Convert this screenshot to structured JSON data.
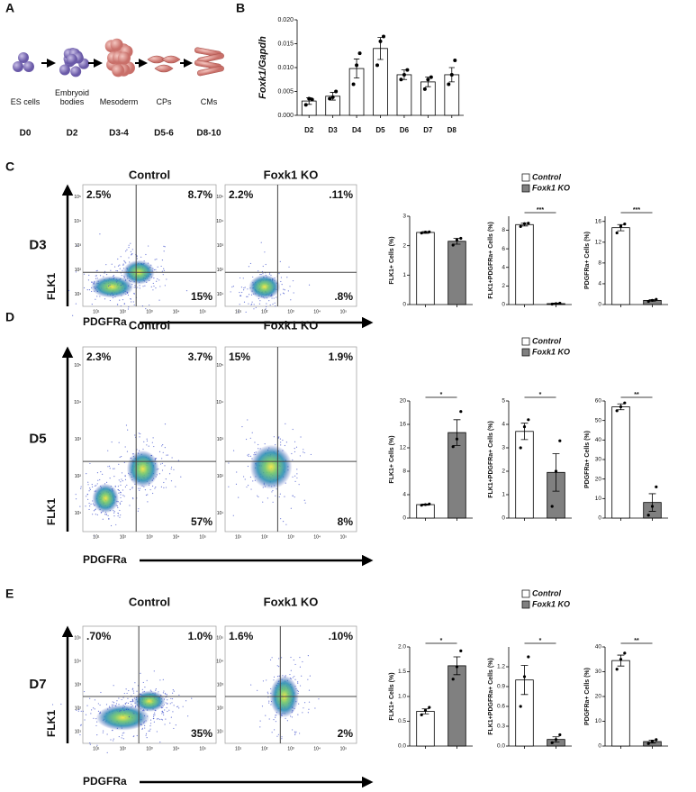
{
  "figure": {
    "panel_a": {
      "label": "A",
      "stages": [
        {
          "name": "ES cells",
          "day": "D0"
        },
        {
          "name": "Embryoid bodies",
          "day": "D2"
        },
        {
          "name": "Mesoderm",
          "day": "D3-4"
        },
        {
          "name": "CPs",
          "day": "D5-6"
        },
        {
          "name": "CMs",
          "day": "D8-10"
        }
      ]
    },
    "panel_b_label": "B",
    "flow_axis_ticks": [
      "10¹",
      "10²",
      "10³",
      "10⁴",
      "10⁵"
    ],
    "flow_panels": [
      {
        "label": "C",
        "day": "D3",
        "titles": [
          "Control",
          "Foxk1 KO"
        ],
        "y_label": "FLK1",
        "x_label": "PDGFRa",
        "plots": [
          {
            "top_left": "2.5%",
            "top_right": "8.7%",
            "bottom_right": "15%"
          },
          {
            "top_left": "2.2%",
            "top_right": ".11%",
            "bottom_right": ".8%"
          }
        ]
      },
      {
        "label": "D",
        "day": "D5",
        "titles": [
          "Control",
          "Foxk1 KO"
        ],
        "y_label": "FLK1",
        "x_label": "PDGFRa",
        "plots": [
          {
            "top_left": "2.3%",
            "top_right": "3.7%",
            "bottom_right": "57%"
          },
          {
            "top_left": "15%",
            "top_right": "1.9%",
            "bottom_right": "8%"
          }
        ]
      },
      {
        "label": "E",
        "day": "D7",
        "titles": [
          "Control",
          "Foxk1 KO"
        ],
        "y_label": "FLK1",
        "x_label": "PDGFRa",
        "plots": [
          {
            "top_left": ".70%",
            "top_right": "1.0%",
            "bottom_right": "35%"
          },
          {
            "top_left": "1.6%",
            "top_right": ".10%",
            "bottom_right": "2%"
          }
        ]
      }
    ]
  },
  "chart_data": [
    {
      "type": "bar",
      "y_label": "Foxk1/Gapdh",
      "color": "#ffffff",
      "categories": [
        "D2",
        "D3",
        "D4",
        "D5",
        "D6",
        "D7",
        "D8"
      ],
      "values": [
        0.003,
        0.004,
        0.0098,
        0.014,
        0.0085,
        0.007,
        0.0085
      ],
      "errors": [
        0.0007,
        0.0008,
        0.002,
        0.0023,
        0.001,
        0.001,
        0.0015
      ],
      "points": [
        [
          0.0022,
          0.0035,
          0.0033
        ],
        [
          0.0035,
          0.0038,
          0.005
        ],
        [
          0.0065,
          0.0105,
          0.013
        ],
        [
          0.0105,
          0.0155,
          0.0165
        ],
        [
          0.0075,
          0.0085,
          0.0095
        ],
        [
          0.0055,
          0.0075,
          0.008
        ],
        [
          0.0065,
          0.0085,
          0.0115
        ]
      ],
      "ylim": [
        0,
        0.02
      ],
      "yticks": [
        {
          "value": 0,
          "label": "0.000"
        },
        {
          "value": 0.005,
          "label": "0.005"
        },
        {
          "value": 0.01,
          "label": "0.010"
        },
        {
          "value": 0.015,
          "label": "0.015"
        },
        {
          "value": 0.02,
          "label": "0.020"
        }
      ]
    },
    {
      "type": "bar",
      "y_label": "FLK1+ Cells (%)",
      "ylim": [
        0,
        3
      ],
      "yticks": [
        0,
        1,
        2,
        3
      ],
      "series": [
        {
          "name": "Control",
          "color": "#ffffff",
          "values": [
            2.45
          ],
          "errors": [
            0.03
          ],
          "points": [
            [
              2.43,
              2.46,
              2.47
            ]
          ]
        },
        {
          "name": "Foxk1 KO",
          "color": "#808080",
          "values": [
            2.15
          ],
          "errors": [
            0.1
          ],
          "points": [
            [
              2.02,
              2.2,
              2.25
            ]
          ]
        }
      ]
    },
    {
      "type": "bar",
      "y_label": "FLK1+PDGFRa+ Cells (%)",
      "ylim": [
        0,
        9.5
      ],
      "yticks": [
        0,
        2,
        4,
        6,
        8
      ],
      "significance": "***",
      "series": [
        {
          "name": "Control",
          "color": "#ffffff",
          "values": [
            8.6
          ],
          "errors": [
            0.15
          ],
          "points": [
            [
              8.4,
              8.7,
              8.75
            ]
          ]
        },
        {
          "name": "Foxk1 KO",
          "color": "#808080",
          "values": [
            0.1
          ],
          "errors": [
            0.05
          ],
          "points": [
            [
              0.05,
              0.1,
              0.15
            ]
          ]
        }
      ]
    },
    {
      "type": "bar",
      "y_label": "PDGFRa+ Cells (%)",
      "ylim": [
        0,
        17
      ],
      "yticks": [
        0,
        4,
        8,
        12,
        16
      ],
      "significance": "***",
      "series": [
        {
          "name": "Control",
          "color": "#ffffff",
          "values": [
            14.8
          ],
          "errors": [
            0.6
          ],
          "points": [
            [
              13.8,
              15.1,
              15.5
            ]
          ]
        },
        {
          "name": "Foxk1 KO",
          "color": "#808080",
          "values": [
            0.8
          ],
          "errors": [
            0.15
          ],
          "points": [
            [
              0.6,
              0.8,
              1.0
            ]
          ]
        }
      ]
    },
    {
      "type": "bar",
      "y_label": "FLK1+ Cells (%)",
      "ylim": [
        0,
        20
      ],
      "yticks": [
        0,
        4,
        8,
        12,
        16,
        20
      ],
      "significance": "*",
      "series": [
        {
          "name": "Control",
          "color": "#ffffff",
          "values": [
            2.3
          ],
          "errors": [
            0.1
          ],
          "points": [
            [
              2.2,
              2.3,
              2.4
            ]
          ]
        },
        {
          "name": "Foxk1 KO",
          "color": "#808080",
          "values": [
            14.6
          ],
          "errors": [
            2.2
          ],
          "points": [
            [
              12.2,
              13.5,
              18.2
            ]
          ]
        }
      ]
    },
    {
      "type": "bar",
      "y_label": "FLK1+PDGFRa+ Cells (%)",
      "ylim": [
        0,
        5
      ],
      "yticks": [
        0,
        1,
        2,
        3,
        4,
        5
      ],
      "significance": "*",
      "series": [
        {
          "name": "Control",
          "color": "#ffffff",
          "values": [
            3.7
          ],
          "errors": [
            0.35
          ],
          "points": [
            [
              3.0,
              3.9,
              4.2
            ]
          ]
        },
        {
          "name": "Foxk1 KO",
          "color": "#808080",
          "values": [
            1.95
          ],
          "errors": [
            0.8
          ],
          "points": [
            [
              0.5,
              2.0,
              3.3
            ]
          ]
        }
      ]
    },
    {
      "type": "bar",
      "y_label": "PDGFRa+ Cells (%)",
      "ylim": [
        0,
        60
      ],
      "yticks": [
        0,
        10,
        20,
        30,
        40,
        50,
        60
      ],
      "significance": "**",
      "series": [
        {
          "name": "Control",
          "color": "#ffffff",
          "values": [
            57
          ],
          "errors": [
            1.5
          ],
          "points": [
            [
              55,
              57,
              59
            ]
          ]
        },
        {
          "name": "Foxk1 KO",
          "color": "#808080",
          "values": [
            8
          ],
          "errors": [
            4.5
          ],
          "points": [
            [
              1.5,
              6,
              16
            ]
          ]
        }
      ]
    },
    {
      "type": "bar",
      "y_label": "FLK1+ Cells (%)",
      "ylim": [
        0,
        2
      ],
      "yticks": [
        {
          "value": 0,
          "label": "0.0"
        },
        0.5,
        {
          "value": 1,
          "label": "1.0"
        },
        1.5,
        {
          "value": 2,
          "label": "2.0"
        }
      ],
      "significance": "*",
      "series": [
        {
          "name": "Control",
          "color": "#ffffff",
          "values": [
            0.7
          ],
          "errors": [
            0.05
          ],
          "points": [
            [
              0.63,
              0.72,
              0.78
            ]
          ]
        },
        {
          "name": "Foxk1 KO",
          "color": "#808080",
          "values": [
            1.62
          ],
          "errors": [
            0.18
          ],
          "points": [
            [
              1.35,
              1.6,
              1.92
            ]
          ]
        }
      ]
    },
    {
      "type": "bar",
      "y_label": "FLK1+PDGFRa+ Cells (%)",
      "ylim": [
        0,
        1.5
      ],
      "yticks": [
        {
          "value": 0,
          "label": "0.0"
        },
        0.3,
        0.6,
        0.9,
        {
          "value": 1.2,
          "label": "1.2"
        }
      ],
      "significance": "*",
      "series": [
        {
          "name": "Control",
          "color": "#ffffff",
          "values": [
            1.0
          ],
          "errors": [
            0.22
          ],
          "points": [
            [
              0.6,
              1.05,
              1.35
            ]
          ]
        },
        {
          "name": "Foxk1 KO",
          "color": "#808080",
          "values": [
            0.1
          ],
          "errors": [
            0.04
          ],
          "points": [
            [
              0.05,
              0.1,
              0.17
            ]
          ]
        }
      ]
    },
    {
      "type": "bar",
      "y_label": "PDGFRa+ Cells (%)",
      "ylim": [
        0,
        40
      ],
      "yticks": [
        0,
        10,
        20,
        30,
        40
      ],
      "significance": "**",
      "series": [
        {
          "name": "Control",
          "color": "#ffffff",
          "values": [
            34.5
          ],
          "errors": [
            2.2
          ],
          "points": [
            [
              31,
              35,
              37.5
            ]
          ]
        },
        {
          "name": "Foxk1 KO",
          "color": "#808080",
          "values": [
            1.8
          ],
          "errors": [
            0.6
          ],
          "points": [
            [
              1.0,
              1.9,
              2.6
            ]
          ]
        }
      ]
    }
  ]
}
